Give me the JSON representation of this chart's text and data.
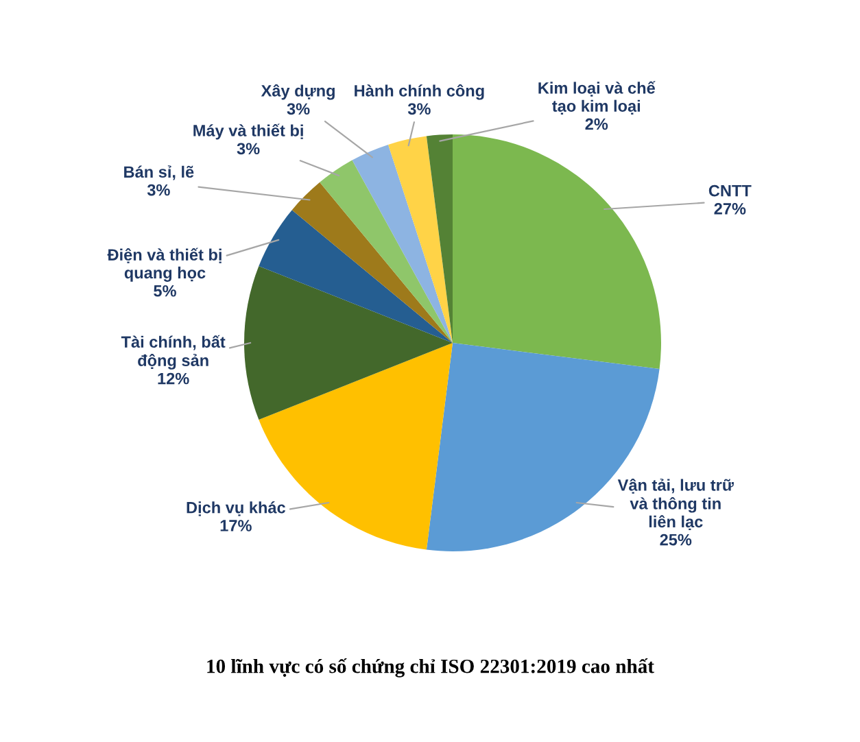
{
  "chart_data": {
    "type": "pie",
    "title": "10 lĩnh vực có số chứng chỉ ISO 22301:2019 cao nhất",
    "categories": [
      "CNTT",
      "Vận tải, lưu trữ\nvà thông tin\nliên lạc",
      "Dịch vụ khác",
      "Tài chính, bất\nđộng sản",
      "Điện và thiết bị\nquang học",
      "Bán sỉ, lẽ",
      "Máy và thiết bị",
      "Xây dựng",
      "Hành chính công",
      "Kim loại và chế\ntạo kim loại"
    ],
    "values": [
      27,
      25,
      17,
      12,
      5,
      3,
      3,
      3,
      3,
      2
    ],
    "colors": [
      "#7cb84f",
      "#5b9bd5",
      "#ffc000",
      "#43682b",
      "#255e91",
      "#9e7a1b",
      "#8fc66a",
      "#8db4e2",
      "#ffd347",
      "#548235"
    ],
    "value_labels": [
      "27%",
      "25%",
      "17%",
      "12%",
      "5%",
      "3%",
      "3%",
      "3%",
      "3%",
      "2%"
    ]
  }
}
